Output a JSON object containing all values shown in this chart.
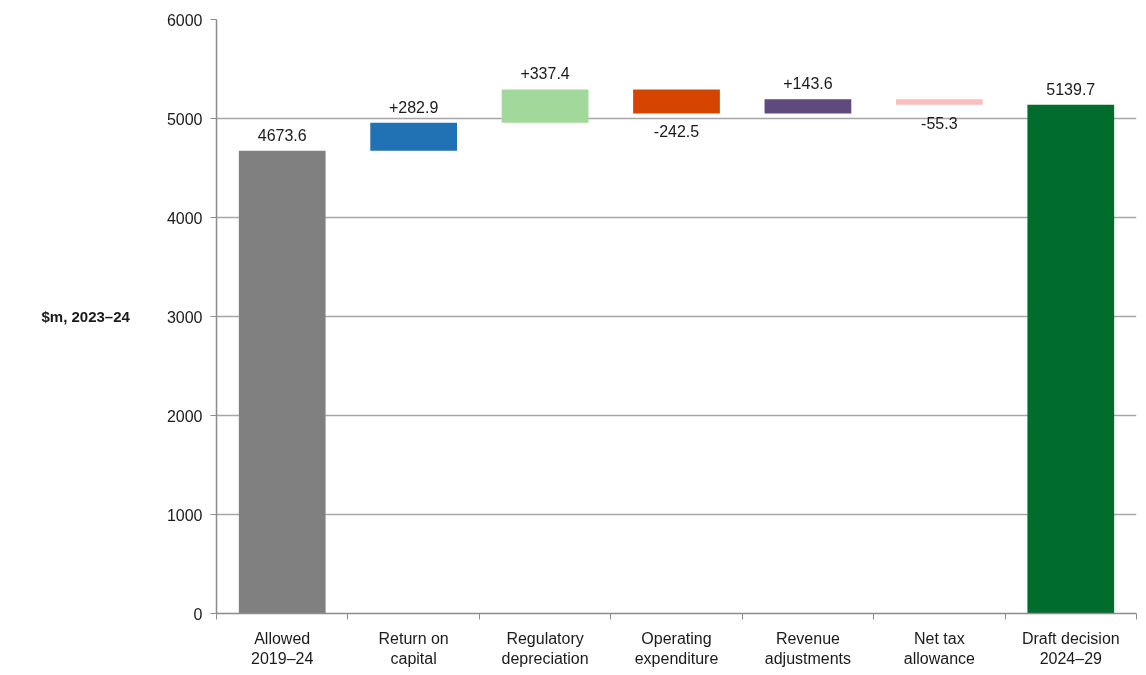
{
  "chart_data": {
    "type": "bar",
    "ylabel": "$m, 2023–24",
    "categories": [
      "Allowed\n2019–24",
      "Return on\ncapital",
      "Regulatory\ndepreciation",
      "Operating\nexpenditure",
      "Revenue\nadjustments",
      "Net tax\nallowance",
      "Draft decision\n2024–29"
    ],
    "values": [
      4673.6,
      282.9,
      337.4,
      -242.5,
      143.6,
      -55.3,
      5139.7
    ],
    "base": [
      0,
      4673.6,
      4956.5,
      5293.9,
      5051.4,
      5195.0,
      0
    ],
    "colors": [
      "#808080",
      "#2171b5",
      "#a1d99b",
      "#d54500",
      "#5f4a7e",
      "#fbbdbd",
      "#006d2c"
    ],
    "value_labels": [
      "4673.6",
      "+282.9",
      "+337.4",
      "-242.5",
      "+143.6",
      "-55.3",
      "5139.7"
    ],
    "ylim": [
      0,
      6000
    ],
    "yticks": [
      0,
      1000,
      2000,
      3000,
      4000,
      5000,
      6000
    ],
    "grid": "y"
  }
}
